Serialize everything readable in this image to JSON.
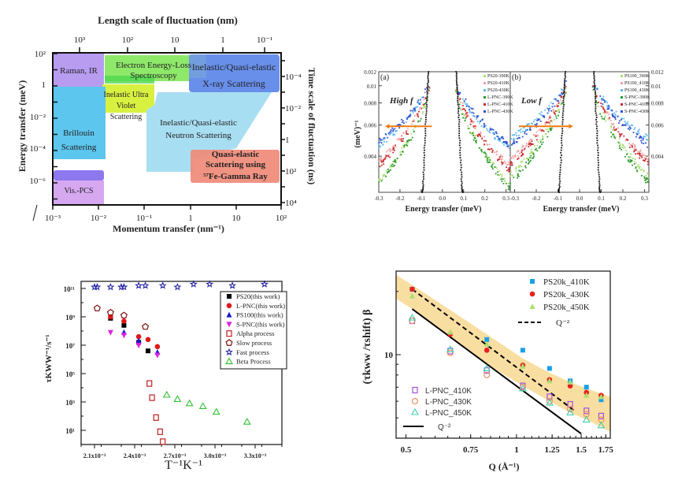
{
  "chart_data": [
    {
      "type": "diagram",
      "panel": "top-left",
      "title": "",
      "top_axis_label": "Length scale of fluctuation (nm)",
      "top_ticks": [
        "10^3",
        "10^2",
        "10",
        "1",
        "10^-1"
      ],
      "xlabel": "Momentum transfer (nm^-1)",
      "x_ticks": [
        "10^-3",
        "10^-2",
        "10^-1",
        "1",
        "10",
        "10^2"
      ],
      "ylabel": "Energy transfer (meV)",
      "y_ticks": [
        "10^2",
        "1",
        "10^-2",
        "10^-4",
        "10^-6"
      ],
      "right_axis_label": "Time scale of fluctuation (ns)",
      "right_ticks": [
        "10^-4",
        "10^-2",
        "1",
        "10^2",
        "10^4"
      ],
      "regions": [
        {
          "label": "Raman, IR",
          "color": "#b79cf0"
        },
        {
          "label": "Electron Energy-Loss Spectroscopy",
          "color": "#8ee86a"
        },
        {
          "label": "Inelastic/Quasi-elastic X-ray Scattering",
          "color": "#5b86e8"
        },
        {
          "label": "Inelastic Ultra Violet Scattering",
          "color": "#d8f040"
        },
        {
          "label": "Brillouin Scattering",
          "color": "#5cc6ee"
        },
        {
          "label": "Inelastic/Quasi-elastic Neutron Scattering",
          "color": "#a8def2"
        },
        {
          "label": "Quasi-elastic Scattering using 57Fe-Gamma Ray",
          "color": "#f08a78"
        },
        {
          "label": "Vis.-PCS",
          "color": "#d6a8f0"
        }
      ]
    },
    {
      "type": "scatter",
      "panel": "top-right-a",
      "panel_label": "(a)",
      "annotation": "High f",
      "xlabel": "Energy transfer (meV)",
      "ylabel": "(meV)^-1",
      "x_ticks": [
        "-0.3",
        "-0.2",
        "-0.1",
        "0.0",
        "0.1",
        "0.2",
        "0.3"
      ],
      "y_ticks": [
        "0.012",
        "0.01",
        "0.008",
        "0.006",
        "0.004"
      ],
      "xlim": [
        -0.3,
        0.32
      ],
      "ylim": [
        0.0025,
        0.012
      ],
      "legend": [
        "PS20-390K",
        "PS20-410K",
        "PS20-430K",
        "L-PNC-390K",
        "L-PNC-410K",
        "L-PNC-430K"
      ],
      "series": [
        {
          "name": "PS20-390K",
          "color": "#a8e070",
          "y_at_edge": 0.0029
        },
        {
          "name": "PS20-410K",
          "color": "#f0a0a0",
          "y_at_edge": 0.0037
        },
        {
          "name": "PS20-430K",
          "color": "#60b8f0",
          "y_at_edge": 0.0046
        },
        {
          "name": "L-PNC-390K",
          "color": "#2a9a2a",
          "y_at_edge": 0.0028
        },
        {
          "name": "L-PNC-410K",
          "color": "#cc2a2a",
          "y_at_edge": 0.0035
        },
        {
          "name": "L-PNC-430K",
          "color": "#3050d0",
          "y_at_edge": 0.0048
        },
        {
          "name": "resolution",
          "color": "#111111",
          "y_at_edge": 0
        }
      ]
    },
    {
      "type": "scatter",
      "panel": "top-right-b",
      "panel_label": "(b)",
      "annotation": "Low f",
      "xlabel": "Energy transfer (meV)",
      "ylabel": "",
      "x_ticks": [
        "-0.3",
        "-0.2",
        "-0.1",
        "0.0",
        "0.1",
        "0.2",
        "0.3"
      ],
      "y_ticks": [
        "0.012",
        "0.01",
        "0.008",
        "0.006",
        "0.004"
      ],
      "xlim": [
        -0.32,
        0.32
      ],
      "ylim": [
        0.0025,
        0.012
      ],
      "legend": [
        "PS100_390K",
        "PS100_410K",
        "PS100_430K",
        "S-PNC-390K",
        "S-PNC-410K",
        "S-PNC-430K"
      ],
      "series": [
        {
          "name": "PS100_390K",
          "color": "#a8e070",
          "y_at_edge": 0.0033
        },
        {
          "name": "PS100_410K",
          "color": "#f0a0a0",
          "y_at_edge": 0.004
        },
        {
          "name": "PS100_430K",
          "color": "#60b8f0",
          "y_at_edge": 0.0052
        },
        {
          "name": "S-PNC-390K",
          "color": "#2a9a2a",
          "y_at_edge": 0.003
        },
        {
          "name": "S-PNC-410K",
          "color": "#cc2a2a",
          "y_at_edge": 0.0038
        },
        {
          "name": "S-PNC-430K",
          "color": "#3050d0",
          "y_at_edge": 0.0048
        },
        {
          "name": "resolution",
          "color": "#111111",
          "y_at_edge": 0
        }
      ]
    },
    {
      "type": "scatter",
      "panel": "bottom-left",
      "xlabel": "T^-1 K^-1",
      "ylabel": "τ_KWW^-1 / s^-1",
      "x_ticks": [
        "2.1x10^-3",
        "2.4x10^-3",
        "2.7x10^-3",
        "3.0x10^-3",
        "3.3x10^-3"
      ],
      "y_ticks": [
        "10^11",
        "10^9",
        "10^7",
        "10^5",
        "10^3",
        "10^1"
      ],
      "xlim": [
        0.002,
        0.0035
      ],
      "ylim_log10": [
        0,
        11.5
      ],
      "series": [
        {
          "name": "PS20(this work)",
          "marker": "square-filled",
          "color": "#000000",
          "x": [
            0.00222,
            0.00232,
            0.00243,
            0.0025
          ],
          "log10y": [
            8.9,
            8.4,
            7.2,
            6.6
          ]
        },
        {
          "name": "L-PNC(this work)",
          "marker": "circle-filled",
          "color": "#e01818",
          "x": [
            0.00222,
            0.00232,
            0.00243,
            0.0025,
            0.00257
          ],
          "log10y": [
            9.0,
            8.7,
            7.6,
            7.4,
            6.9
          ]
        },
        {
          "name": "PS100(this work)",
          "marker": "triangle-filled",
          "color": "#1818d0",
          "x": [
            0.00232,
            0.00243,
            0.00257
          ],
          "log10y": [
            7.9,
            7.3,
            6.5
          ]
        },
        {
          "name": "S-PNC(this work)",
          "marker": "triangle-down-filled",
          "color": "#e020e0",
          "x": [
            0.00222,
            0.00232,
            0.00243,
            0.00257
          ],
          "log10y": [
            7.9,
            7.7,
            7.0,
            6.3
          ]
        },
        {
          "name": "Alpha process",
          "marker": "square-open",
          "color": "#c02020",
          "x": [
            0.00251,
            0.00253,
            0.00256,
            0.00259,
            0.00261
          ],
          "log10y": [
            4.3,
            3.3,
            1.9,
            0.9,
            0.2
          ]
        },
        {
          "name": "Slow process",
          "marker": "pentagon-open",
          "color": "#7a1010",
          "x": [
            0.00212,
            0.00222,
            0.00232,
            0.00248
          ],
          "log10y": [
            9.6,
            9.3,
            9.1,
            8.3
          ]
        },
        {
          "name": "Fast process",
          "marker": "star-open",
          "color": "#1a1aa0",
          "x": [
            0.0021,
            0.00212,
            0.00222,
            0.0023,
            0.00232,
            0.00243,
            0.00248,
            0.00261,
            0.00272,
            0.00284,
            0.00296,
            0.00313,
            0.00337
          ],
          "log10y": [
            11.1,
            11.1,
            11.1,
            11.1,
            11.1,
            11.2,
            11.2,
            11.2,
            11.1,
            11.3,
            11.3,
            11.2,
            11.3
          ]
        },
        {
          "name": "Beta Process",
          "marker": "triangle-open",
          "color": "#30c030",
          "x": [
            0.00264,
            0.00272,
            0.00281,
            0.00291,
            0.00301,
            0.00324
          ],
          "log10y": [
            3.5,
            3.2,
            2.9,
            2.7,
            2.3,
            1.6
          ]
        }
      ]
    },
    {
      "type": "scatter",
      "panel": "bottom-right",
      "xlabel": "Q (Å^-1)",
      "ylabel": "(τ_kww / τ_shift)^β",
      "x_ticks": [
        "0.5",
        "0.75",
        "1",
        "1.25",
        "1.5",
        "1.75"
      ],
      "y_ticks": [
        "10"
      ],
      "xlim": [
        0.47,
        1.8
      ],
      "ylim": [
        4,
        25
      ],
      "series": [
        {
          "name": "PS20k_410K",
          "marker": "square-filled",
          "color": "#1aa0e8",
          "x": [
            0.52,
            0.83,
            1.04,
            1.23,
            1.4,
            1.55,
            1.7
          ],
          "y": [
            20.5,
            11.8,
            10.5,
            8.6,
            7.5,
            7.0,
            6.1
          ]
        },
        {
          "name": "PS20k_430K",
          "marker": "circle-filled",
          "color": "#e82020",
          "x": [
            0.52,
            0.66,
            0.83,
            1.04,
            1.23,
            1.4,
            1.55,
            1.7
          ],
          "y": [
            20.5,
            12.5,
            10.5,
            8.9,
            7.6,
            7.1,
            6.6,
            6.4
          ]
        },
        {
          "name": "PS20k_450K",
          "marker": "triangle-filled",
          "color": "#a8e070",
          "x": [
            0.52,
            0.66,
            0.83,
            1.04,
            1.23,
            1.4,
            1.55,
            1.7
          ],
          "y": [
            19.0,
            12.8,
            11.2,
            8.8,
            7.5,
            7.4,
            6.4,
            6.3
          ]
        },
        {
          "name": "L-PNC_410K",
          "marker": "square-open",
          "color": "#a050e0",
          "x": [
            0.52,
            0.66,
            0.83,
            1.04,
            1.23,
            1.4,
            1.55,
            1.7
          ],
          "y": [
            14.5,
            10.4,
            8.4,
            7.1,
            6.3,
            5.8,
            5.4,
            5.1
          ]
        },
        {
          "name": "L-PNC_430K",
          "marker": "circle-open",
          "color": "#f09060",
          "x": [
            0.52,
            0.66,
            0.83,
            1.04,
            1.23,
            1.4,
            1.55,
            1.7
          ],
          "y": [
            14.5,
            10.2,
            8.0,
            7.0,
            6.0,
            5.5,
            5.2,
            4.9
          ]
        },
        {
          "name": "L-PNC_450K",
          "marker": "triangle-open",
          "color": "#40d0b0",
          "x": [
            0.52,
            0.66,
            0.83,
            1.04,
            1.23,
            1.4,
            1.55,
            1.7
          ],
          "y": [
            15.0,
            10.6,
            8.6,
            6.9,
            5.9,
            5.3,
            4.9,
            4.6
          ]
        },
        {
          "name": "Q^-2 (dashed)",
          "marker": "dashed-line",
          "color": "#000000",
          "x": [
            0.52,
            1.44
          ],
          "y": [
            20.5,
            5.4
          ]
        },
        {
          "name": "Q^-2 (solid)",
          "marker": "solid-line",
          "color": "#000000",
          "x": [
            0.52,
            1.5
          ],
          "y": [
            16.5,
            4.2
          ]
        }
      ],
      "band_color": "#f8d890"
    }
  ],
  "labels": {
    "tl_top_axis": "Length scale of fluctuation (nm)",
    "tl_x_axis": "Momentum transfer (nm⁻¹)",
    "tl_y_axis": "Energy transfer (meV)",
    "tl_right_axis": "Time scale of fluctuation (ns)",
    "tl_top_ticks": [
      "10³",
      "10²",
      "10",
      "1",
      "10⁻¹"
    ],
    "tl_x_ticks": [
      "10⁻³",
      "10⁻²",
      "10⁻¹",
      "1",
      "10",
      "10²"
    ],
    "tl_y_ticks": [
      "10²",
      "1",
      "10⁻²",
      "10⁻⁴",
      "10⁻⁶"
    ],
    "tl_right_ticks": [
      "10⁻⁴",
      "10⁻²",
      "1",
      "10²",
      "10⁴"
    ],
    "raman": "Raman, IR",
    "eels1": "Electron Energy-Loss",
    "eels2": "Spectroscopy",
    "xray1": "Inelastic/Quasi-elastic",
    "xray2": "X-ray Scattering",
    "uv1": "Inelastic Ultra",
    "uv2": "Violet",
    "uv3": "Scattering",
    "brill1": "Brillouin",
    "brill2": "Scattering",
    "neut1": "Inelastic/Quasi-elastic",
    "neut2": "Neutron Scattering",
    "fe1": "Quasi-elastic",
    "fe2": "Scattering using",
    "fe3": "⁵⁷Fe-Gamma Ray",
    "vis": "Vis.-PCS",
    "a_label": "(a)",
    "b_label": "(b)",
    "high_f": "High f",
    "low_f": "Low f",
    "tr_xlabel": "Energy transfer (meV)",
    "tr_ylabel": "(meV)⁻¹",
    "tr_xticks": [
      "-0.3",
      "-0.2",
      "-0.1",
      "0.0",
      "0.1",
      "0.2",
      "0.3"
    ],
    "tr_yticks": [
      "0.012",
      "0.01",
      "0.008",
      "0.006",
      "0.004"
    ],
    "bl_xlabel": "T⁻¹K⁻¹",
    "bl_ylabel": "τKWW⁻¹/s⁻¹",
    "bl_xticks": [
      "2.1x10⁻³",
      "2.4x10⁻³",
      "2.7x10⁻³",
      "3.0x10⁻³",
      "3.3x10⁻³"
    ],
    "bl_yticks": [
      "10¹¹",
      "10⁹",
      "10⁷",
      "10⁵",
      "10³",
      "10¹"
    ],
    "br_xlabel": "Q (Å⁻¹)",
    "br_ylabel": "(τkww /τshift) β",
    "br_xticks": [
      "0.5",
      "0.75",
      "1",
      "1.25",
      "1.5",
      "1.75"
    ],
    "br_ytick": "10",
    "q2": "Q⁻²"
  }
}
